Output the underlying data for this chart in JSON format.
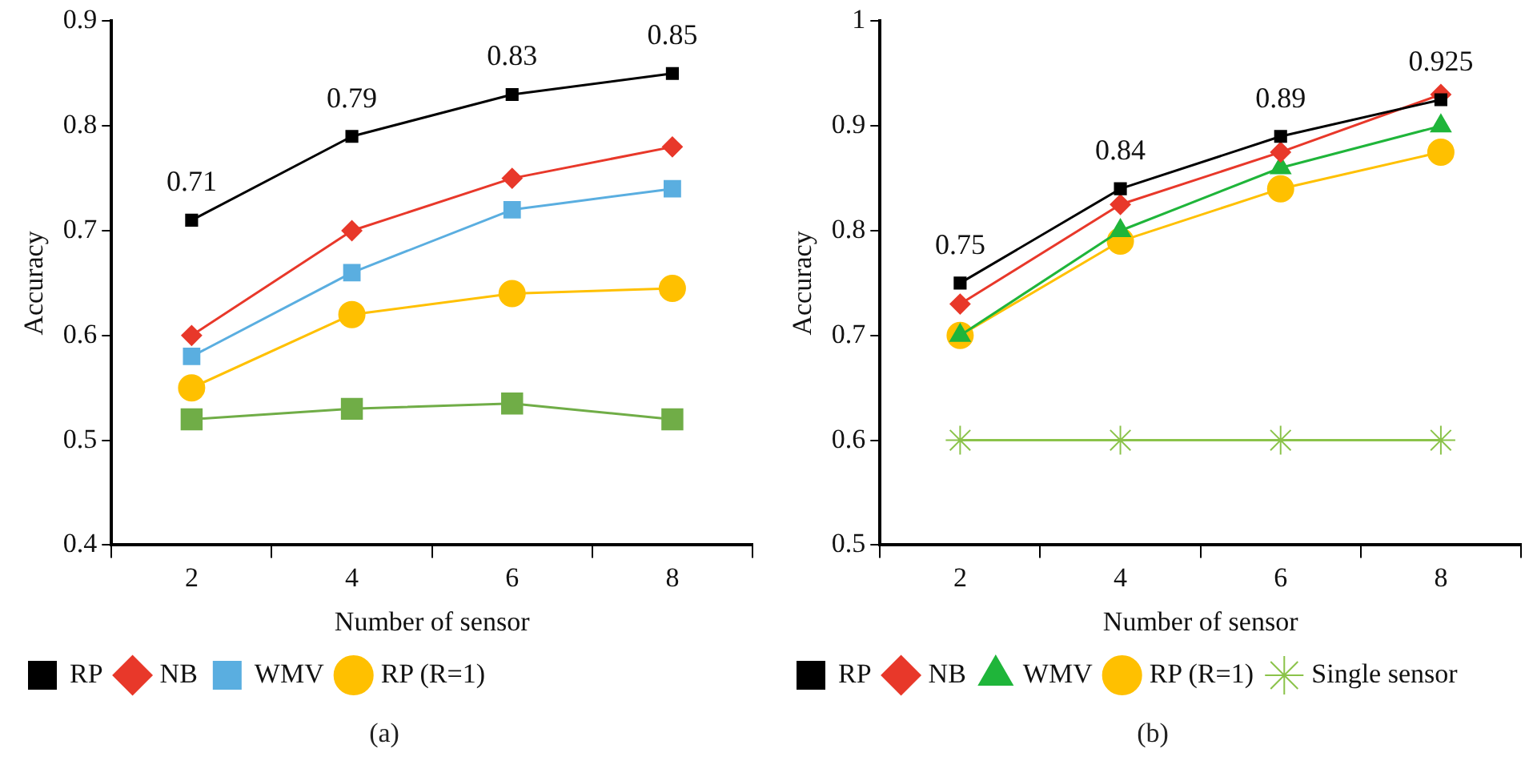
{
  "chart_data": [
    {
      "type": "line",
      "xlabel": "Number of sensor",
      "ylabel": "Accuracy",
      "categories": [
        "2",
        "4",
        "6",
        "8"
      ],
      "ylim": [
        0.4,
        0.9
      ],
      "yticks": [
        0.4,
        0.5,
        0.6,
        0.7,
        0.8,
        0.9
      ],
      "grid": false,
      "legend": "bottom",
      "annotations": [
        "(a)"
      ],
      "series": [
        {
          "name": "RP",
          "color": "#000000",
          "marker": "square",
          "values": [
            0.71,
            0.79,
            0.83,
            0.85
          ],
          "value_labels": [
            "0.71",
            "0.79",
            "0.83",
            "0.85"
          ]
        },
        {
          "name": "NB",
          "color": "#e8382a",
          "marker": "diamond",
          "values": [
            0.6,
            0.7,
            0.75,
            0.78
          ]
        },
        {
          "name": "WMV",
          "color": "#5aaee0",
          "marker": "square",
          "values": [
            0.58,
            0.66,
            0.72,
            0.74
          ]
        },
        {
          "name": "RP (R=1)",
          "color": "#ffc000",
          "marker": "circle",
          "values": [
            0.55,
            0.62,
            0.64,
            0.645
          ]
        },
        {
          "color": "#70ad47",
          "marker": "square",
          "values": [
            0.52,
            0.53,
            0.535,
            0.52
          ]
        }
      ]
    },
    {
      "type": "line",
      "xlabel": "Number of sensor",
      "ylabel": "Accuracy",
      "categories": [
        "2",
        "4",
        "6",
        "8"
      ],
      "ylim": [
        0.5,
        1
      ],
      "yticks": [
        0.5,
        0.6,
        0.7,
        0.8,
        0.9,
        1
      ],
      "grid": false,
      "legend": "bottom",
      "annotations": [
        "(b)"
      ],
      "series": [
        {
          "name": "RP",
          "color": "#000000",
          "marker": "square",
          "values": [
            0.75,
            0.84,
            0.89,
            0.925
          ],
          "value_labels": [
            "0.75",
            "0.84",
            "0.89",
            "0.925"
          ]
        },
        {
          "name": "NB",
          "color": "#e8382a",
          "marker": "diamond",
          "values": [
            0.73,
            0.825,
            0.875,
            0.93
          ]
        },
        {
          "name": "WMV",
          "color": "#1fb53a",
          "marker": "triangle",
          "values": [
            0.7,
            0.8,
            0.86,
            0.9
          ]
        },
        {
          "name": "RP (R=1)",
          "color": "#ffc000",
          "marker": "circle",
          "values": [
            0.7,
            0.79,
            0.84,
            0.875
          ]
        },
        {
          "name": "Single sensor",
          "color": "#8bc34a",
          "marker": "cross",
          "values": [
            0.6,
            0.6,
            0.6,
            0.6
          ]
        }
      ]
    }
  ]
}
